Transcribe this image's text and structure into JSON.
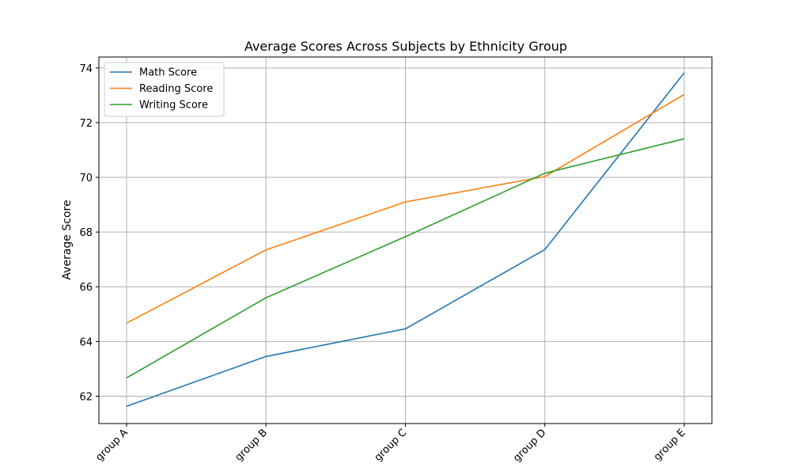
{
  "chart_data": {
    "type": "line",
    "title": "Average Scores Across Subjects by Ethnicity Group",
    "xlabel": "",
    "ylabel": "Average Score",
    "categories": [
      "group A",
      "group B",
      "group C",
      "group D",
      "group E"
    ],
    "ylim": [
      61,
      74.4
    ],
    "yticks": [
      62,
      64,
      66,
      68,
      70,
      72,
      74
    ],
    "grid": true,
    "legend_position": "upper left",
    "series": [
      {
        "name": "Math Score",
        "color": "#1f77b4",
        "values": [
          61.63,
          63.45,
          64.46,
          67.36,
          73.82
        ]
      },
      {
        "name": "Reading Score",
        "color": "#ff7f0e",
        "values": [
          64.67,
          67.35,
          69.1,
          70.03,
          73.03
        ]
      },
      {
        "name": "Writing Score",
        "color": "#2ca02c",
        "values": [
          62.67,
          65.6,
          67.83,
          70.15,
          71.41
        ]
      }
    ]
  }
}
